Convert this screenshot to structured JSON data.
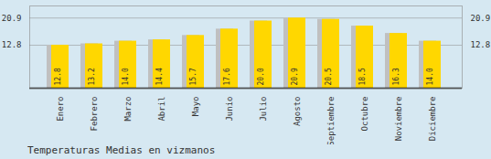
{
  "chart_data": {
    "type": "bar",
    "title": "Temperaturas Medias en vizmanos",
    "categories": [
      "Enero",
      "Febrero",
      "Marzo",
      "Abril",
      "Mayo",
      "Junio",
      "Julio",
      "Agosto",
      "Septiembre",
      "Octubre",
      "Noviembre",
      "Diciembre"
    ],
    "values": [
      12.8,
      13.2,
      14.0,
      14.4,
      15.7,
      17.6,
      20.0,
      20.9,
      20.5,
      18.5,
      16.3,
      14.0
    ],
    "value_labels": [
      "12.8",
      "13.2",
      "14.0",
      "14.4",
      "15.7",
      "17.6",
      "20.0",
      "20.9",
      "20.5",
      "18.5",
      "16.3",
      "14.0"
    ],
    "color": "#FFD700",
    "ylim": [
      0.0,
      24.5
    ],
    "yticks": [
      12.8,
      20.9
    ],
    "grid": true,
    "data_labels": true
  }
}
